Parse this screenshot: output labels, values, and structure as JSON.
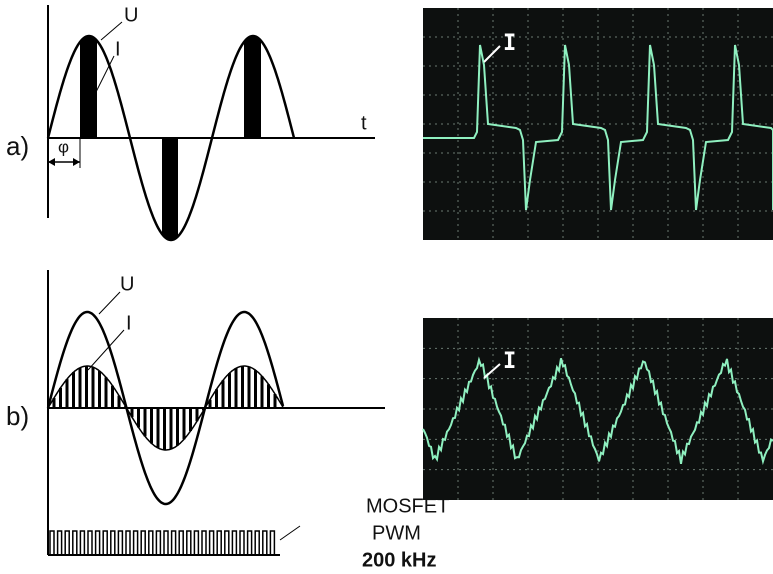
{
  "panel_a": {
    "label": "a)",
    "u_label": "U",
    "i_label": "I",
    "t_label": "t",
    "phi_label": "φ",
    "scope_label": "I"
  },
  "panel_b": {
    "label": "b)",
    "u_label": "U",
    "i_label": "I",
    "pwm_lines": [
      "MOSFET",
      "PWM",
      "200 kHz"
    ],
    "scope_label": "I"
  }
}
